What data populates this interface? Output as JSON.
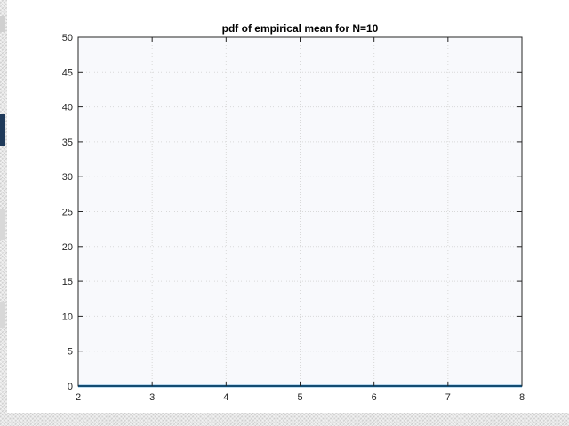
{
  "colors": {
    "axes_background": "#f8f9fc",
    "figure_background": "#ffffff",
    "grid": "#d9d9d9",
    "axis": "#262626",
    "series": "#0072bd"
  },
  "chart_data": {
    "type": "line",
    "title": "pdf of empirical mean for N=10",
    "xlabel": "",
    "ylabel": "",
    "xlim": [
      2,
      8
    ],
    "ylim": [
      0,
      50
    ],
    "xticks": [
      2,
      3,
      4,
      5,
      6,
      7,
      8
    ],
    "yticks": [
      0,
      5,
      10,
      15,
      20,
      25,
      30,
      35,
      40,
      45,
      50
    ],
    "grid": true,
    "legend": "none",
    "series": [
      {
        "color": "#0072bd",
        "x": [
          2,
          2.5,
          3,
          3.5,
          4,
          4.5,
          5,
          5.5,
          6,
          6.5,
          7,
          7.5,
          8
        ],
        "y": [
          0,
          0,
          0,
          0,
          0,
          0,
          0,
          0,
          0,
          0,
          0,
          0,
          0
        ]
      }
    ]
  }
}
